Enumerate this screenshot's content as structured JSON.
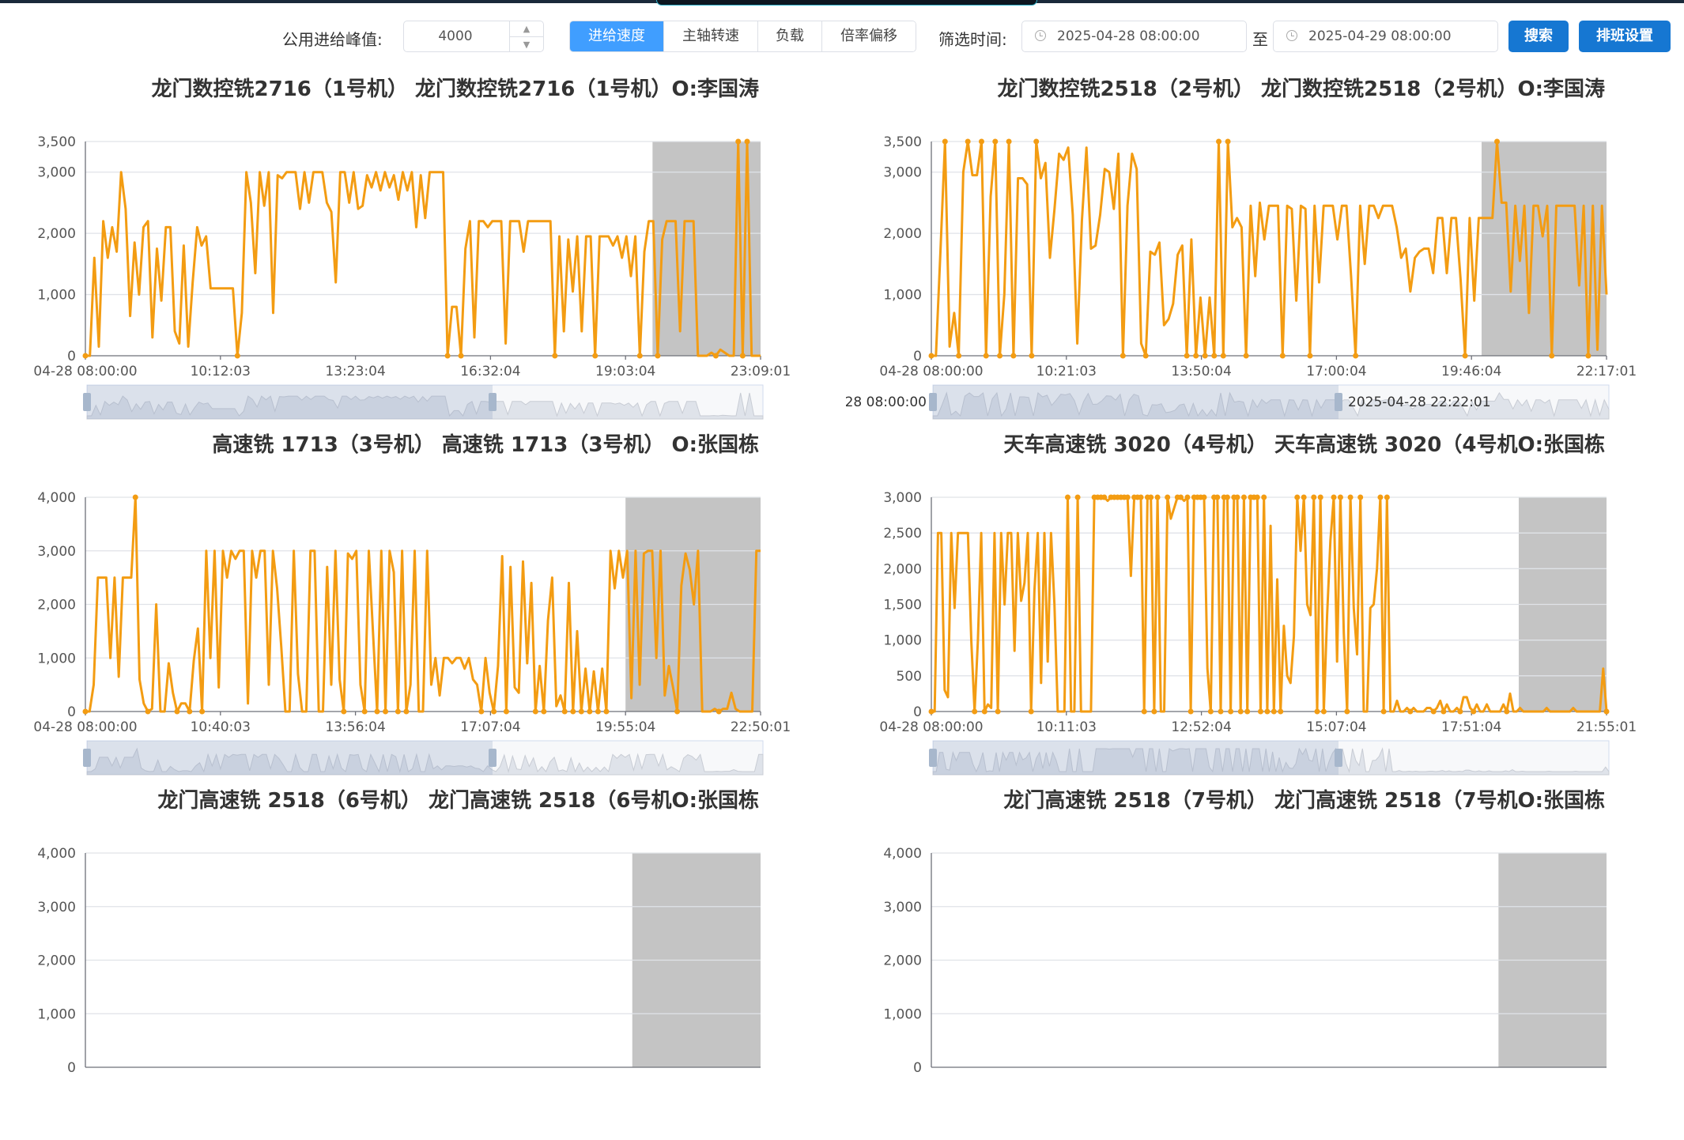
{
  "toolbar": {
    "peak_label": "公用进给峰值:",
    "peak_value": "4000",
    "modes": [
      "进给速度",
      "主轴转速",
      "负载",
      "倍率偏移"
    ],
    "active_mode": 0,
    "filter_label": "筛选时间:",
    "start_time": "2025-04-28 08:00:00",
    "to_label": "至",
    "end_time": "2025-04-29 08:00:00",
    "search_label": "搜索",
    "schedule_label": "排班设置"
  },
  "colors": {
    "line": "#f39c12",
    "shade": "#c4c4c4",
    "primary": "#1677d2",
    "active": "#409eff"
  },
  "chart_data": [
    {
      "type": "line",
      "title": "龙门数控铣2716（1号机） 龙门数控铣2716（1号机）O:李国涛",
      "yticks": [
        0,
        1000,
        2000,
        3000,
        3500
      ],
      "ylim": [
        0,
        3500
      ],
      "xticks": [
        "04-28 08:00:00",
        "10:12:03",
        "13:23:04",
        "16:32:04",
        "19:03:04",
        "23:09:01"
      ],
      "shade_start": 0.84,
      "zoom_labels": [
        "",
        ""
      ],
      "values": [
        0,
        0,
        1600,
        150,
        2200,
        1600,
        2100,
        1700,
        3000,
        2400,
        650,
        1850,
        1000,
        2100,
        2200,
        300,
        1750,
        900,
        2100,
        2100,
        400,
        200,
        1800,
        150,
        1200,
        2100,
        1800,
        1950,
        1100,
        1100,
        1100,
        1100,
        1100,
        1100,
        0,
        700,
        3000,
        2500,
        1350,
        3000,
        2450,
        3000,
        700,
        2950,
        2900,
        3000,
        3000,
        3000,
        2400,
        3000,
        2500,
        3000,
        3000,
        3000,
        2500,
        2350,
        1200,
        3000,
        3000,
        2500,
        3000,
        2400,
        2450,
        2950,
        2750,
        3000,
        2700,
        3000,
        2750,
        2950,
        2550,
        3000,
        2700,
        3000,
        2100,
        2950,
        2250,
        3000,
        3000,
        3000,
        3000,
        0,
        800,
        800,
        0,
        1750,
        2200,
        300,
        2200,
        2200,
        2100,
        2200,
        2200,
        2200,
        200,
        2200,
        2200,
        2200,
        1700,
        2200,
        2200,
        2200,
        2200,
        2200,
        2200,
        0,
        1950,
        400,
        1900,
        1050,
        1950,
        400,
        1950,
        1950,
        0,
        1950,
        1950,
        1950,
        1800,
        1950,
        1600,
        1950,
        1300,
        1950,
        0,
        1700,
        2200,
        2200,
        0,
        1900,
        2200,
        2200,
        2200,
        400,
        2200,
        2200,
        2200,
        0,
        0,
        0,
        50,
        0,
        100,
        50,
        0,
        0,
        3500,
        0,
        3500,
        0,
        0,
        0
      ]
    },
    {
      "type": "line",
      "title": "龙门数控铣2518（2号机） 龙门数控铣2518（2号机）O:李国涛",
      "yticks": [
        0,
        1000,
        2000,
        3000,
        3500
      ],
      "ylim": [
        0,
        3500
      ],
      "xticks": [
        "04-28 08:00:00",
        "10:21:03",
        "13:50:04",
        "17:00:04",
        "19:46:04",
        "22:17:01"
      ],
      "shade_start": 0.815,
      "zoom_labels": [
        "28 08:00:00",
        "2025-04-28 22:22:01"
      ],
      "values": [
        0,
        0,
        1700,
        3500,
        150,
        700,
        0,
        3000,
        3500,
        2950,
        2950,
        3500,
        0,
        2600,
        3500,
        0,
        1000,
        3500,
        0,
        2900,
        2900,
        2800,
        0,
        3500,
        2900,
        3150,
        1600,
        2400,
        3300,
        3200,
        3400,
        2300,
        200,
        2200,
        3400,
        1750,
        1800,
        2300,
        3050,
        3000,
        2400,
        3300,
        0,
        2450,
        3300,
        3050,
        200,
        0,
        1700,
        1650,
        1850,
        500,
        600,
        850,
        1650,
        1800,
        0,
        1900,
        0,
        950,
        0,
        950,
        0,
        3500,
        0,
        3500,
        2100,
        2250,
        2100,
        0,
        2450,
        1300,
        2500,
        1900,
        2450,
        2450,
        2450,
        0,
        2450,
        2400,
        900,
        2450,
        2400,
        0,
        2450,
        1200,
        2450,
        2450,
        2450,
        1900,
        2450,
        2450,
        1300,
        0,
        2450,
        1500,
        2450,
        2450,
        2250,
        2450,
        2450,
        2450,
        2100,
        1600,
        1750,
        1050,
        1600,
        1700,
        1750,
        1750,
        1350,
        2250,
        2250,
        1350,
        2250,
        2250,
        1250,
        0,
        2250,
        900,
        2250,
        2250,
        2250,
        2250,
        3500,
        2500,
        2500,
        1050,
        2450,
        1550,
        2450,
        700,
        2450,
        2450,
        1950,
        2450,
        0,
        2450,
        2450,
        2450,
        2450,
        2450,
        1150,
        2450,
        0,
        2450,
        100,
        2450,
        1000
      ]
    },
    {
      "type": "line",
      "title": "高速铣 1713（3号机） 高速铣 1713（3号机） O:张国栋",
      "yticks": [
        0,
        1000,
        2000,
        3000,
        4000
      ],
      "ylim": [
        0,
        4000
      ],
      "xticks": [
        "04-28 08:00:00",
        "10:40:03",
        "13:56:04",
        "17:07:04",
        "19:55:04",
        "22:50:01"
      ],
      "shade_start": 0.8,
      "zoom_labels": [
        "",
        ""
      ],
      "values": [
        0,
        0,
        500,
        2500,
        2500,
        2500,
        1000,
        2500,
        650,
        2500,
        2500,
        2500,
        4000,
        600,
        150,
        0,
        50,
        2000,
        0,
        0,
        900,
        350,
        0,
        150,
        150,
        0,
        950,
        1550,
        0,
        3000,
        1000,
        3000,
        450,
        3000,
        2500,
        3000,
        2850,
        3000,
        3000,
        150,
        3000,
        2500,
        3000,
        3000,
        500,
        3000,
        2300,
        1200,
        0,
        0,
        3000,
        700,
        0,
        0,
        3000,
        3000,
        0,
        0,
        2700,
        500,
        3000,
        600,
        0,
        2950,
        2850,
        3000,
        500,
        0,
        3000,
        1500,
        0,
        3000,
        0,
        3000,
        2600,
        0,
        3000,
        0,
        500,
        3000,
        0,
        0,
        3000,
        500,
        1000,
        300,
        1000,
        1000,
        900,
        1000,
        1000,
        800,
        1000,
        600,
        500,
        0,
        1000,
        350,
        0,
        850,
        2900,
        0,
        2700,
        450,
        350,
        2800,
        900,
        2400,
        0,
        850,
        0,
        1700,
        2500,
        100,
        300,
        0,
        2400,
        0,
        1500,
        0,
        800,
        0,
        750,
        0,
        800,
        0,
        3000,
        2300,
        3000,
        2500,
        3000,
        250,
        3000,
        500,
        2950,
        3000,
        3000,
        1000,
        3000,
        300,
        850,
        450,
        0,
        2350,
        2950,
        2650,
        2000,
        3000,
        0,
        0,
        0,
        50,
        0,
        50,
        50,
        350,
        50,
        0,
        0,
        0,
        0,
        3000,
        3000
      ]
    },
    {
      "type": "line",
      "title": "天车高速铣 3020（4号机） 天车高速铣 3020（4号机O:张国栋",
      "yticks": [
        0,
        500,
        1000,
        1500,
        2000,
        2500,
        3000
      ],
      "ylim": [
        0,
        3000
      ],
      "xticks": [
        "04-28 08:00:00",
        "10:11:03",
        "12:52:04",
        "15:07:04",
        "17:51:04",
        "21:55:01"
      ],
      "shade_start": 0.87,
      "zoom_labels": [
        "",
        ""
      ],
      "values": [
        0,
        0,
        2500,
        2500,
        300,
        200,
        2500,
        1450,
        2500,
        2500,
        2500,
        2500,
        1000,
        0,
        1000,
        2500,
        0,
        100,
        50,
        2500,
        0,
        2500,
        1500,
        2500,
        2500,
        850,
        2500,
        1550,
        1800,
        2500,
        0,
        1700,
        2500,
        400,
        2500,
        700,
        2500,
        1500,
        0,
        0,
        0,
        3000,
        0,
        0,
        3000,
        0,
        0,
        0,
        0,
        3000,
        3000,
        3000,
        3000,
        2950,
        3000,
        3000,
        3000,
        3000,
        3000,
        3000,
        1900,
        3000,
        3000,
        3000,
        0,
        3000,
        3000,
        0,
        3000,
        0,
        0,
        3000,
        2700,
        2850,
        3000,
        3000,
        2950,
        3000,
        0,
        3000,
        3000,
        3000,
        3000,
        600,
        0,
        3000,
        3000,
        0,
        3000,
        3000,
        0,
        3000,
        3000,
        0,
        3000,
        0,
        3000,
        3000,
        3000,
        0,
        3000,
        0,
        2600,
        0,
        1850,
        0,
        1200,
        500,
        400,
        1050,
        3000,
        2250,
        3000,
        1500,
        1350,
        3000,
        0,
        3000,
        0,
        1350,
        2400,
        3000,
        700,
        3000,
        1100,
        0,
        3000,
        1450,
        800,
        3000,
        0,
        0,
        1450,
        1500,
        2000,
        3000,
        0,
        3000,
        0,
        0,
        150,
        0,
        0,
        50,
        0,
        50,
        0,
        0,
        0,
        50,
        50,
        0,
        50,
        150,
        0,
        100,
        0,
        0,
        50,
        0,
        200,
        200,
        50,
        0,
        100,
        0,
        0,
        100,
        0,
        0,
        0,
        0,
        100,
        0,
        250,
        0,
        0,
        50,
        0,
        0,
        0,
        0,
        0,
        0,
        0,
        50,
        0,
        0,
        0,
        0,
        0,
        0,
        0,
        50,
        0,
        0,
        0,
        0,
        0,
        0,
        0,
        0,
        600,
        0
      ]
    },
    {
      "type": "line",
      "title": "龙门高速铣 2518（6号机） 龙门高速铣 2518（6号机O:张国栋",
      "yticks": [
        0,
        1000,
        2000,
        3000,
        4000
      ],
      "ylim": [
        0,
        4000
      ],
      "xticks": [],
      "shade_start": 0.81,
      "zoom_labels": [
        "",
        ""
      ],
      "values": []
    },
    {
      "type": "line",
      "title": "龙门高速铣 2518（7号机） 龙门高速铣 2518（7号机O:张国栋",
      "yticks": [
        0,
        1000,
        2000,
        3000,
        4000
      ],
      "ylim": [
        0,
        4000
      ],
      "xticks": [],
      "shade_start": 0.84,
      "zoom_labels": [
        "",
        ""
      ],
      "values": []
    }
  ]
}
